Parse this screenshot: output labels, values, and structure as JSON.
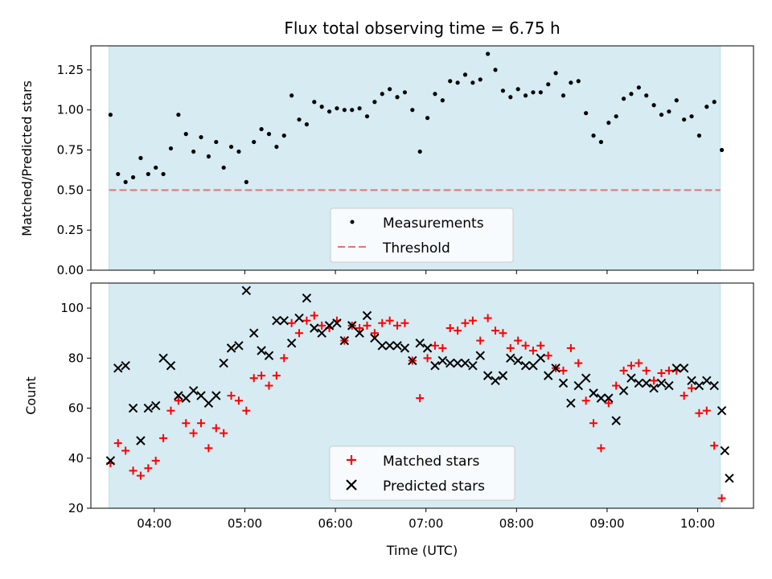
{
  "chart_data": [
    {
      "type": "scatter",
      "title": "Flux total observing time = 6.75 h",
      "ylabel": "Matched/Predicted stars",
      "xlabel": "",
      "ylim": [
        0,
        1.4
      ],
      "yticks": [
        "0.00",
        "0.25",
        "0.50",
        "0.75",
        "1.00",
        "1.25"
      ],
      "xlim": [
        "03:18",
        "10:37"
      ],
      "shaded_span": [
        "03:30",
        "10:15"
      ],
      "series": [
        {
          "name": "Measurements",
          "color": "#000000",
          "marker": "dot",
          "points": [
            [
              "03:31",
              0.97
            ],
            [
              "03:36",
              0.6
            ],
            [
              "03:41",
              0.55
            ],
            [
              "03:46",
              0.58
            ],
            [
              "03:51",
              0.7
            ],
            [
              "03:56",
              0.6
            ],
            [
              "04:01",
              0.64
            ],
            [
              "04:06",
              0.6
            ],
            [
              "04:11",
              0.76
            ],
            [
              "04:16",
              0.97
            ],
            [
              "04:21",
              0.85
            ],
            [
              "04:26",
              0.74
            ],
            [
              "04:31",
              0.83
            ],
            [
              "04:36",
              0.71
            ],
            [
              "04:41",
              0.8
            ],
            [
              "04:46",
              0.64
            ],
            [
              "04:51",
              0.77
            ],
            [
              "04:56",
              0.74
            ],
            [
              "05:01",
              0.55
            ],
            [
              "05:06",
              0.8
            ],
            [
              "05:11",
              0.88
            ],
            [
              "05:16",
              0.85
            ],
            [
              "05:21",
              0.77
            ],
            [
              "05:26",
              0.84
            ],
            [
              "05:31",
              1.09
            ],
            [
              "05:36",
              0.94
            ],
            [
              "05:41",
              0.91
            ],
            [
              "05:46",
              1.05
            ],
            [
              "05:51",
              1.02
            ],
            [
              "05:56",
              0.99
            ],
            [
              "06:01",
              1.01
            ],
            [
              "06:06",
              1.0
            ],
            [
              "06:11",
              1.0
            ],
            [
              "06:16",
              1.01
            ],
            [
              "06:21",
              0.96
            ],
            [
              "06:26",
              1.05
            ],
            [
              "06:31",
              1.1
            ],
            [
              "06:36",
              1.13
            ],
            [
              "06:41",
              1.08
            ],
            [
              "06:46",
              1.11
            ],
            [
              "06:51",
              1.0
            ],
            [
              "06:56",
              0.74
            ],
            [
              "07:01",
              0.95
            ],
            [
              "07:06",
              1.1
            ],
            [
              "07:11",
              1.06
            ],
            [
              "07:16",
              1.18
            ],
            [
              "07:21",
              1.17
            ],
            [
              "07:26",
              1.22
            ],
            [
              "07:31",
              1.17
            ],
            [
              "07:36",
              1.19
            ],
            [
              "07:41",
              1.35
            ],
            [
              "07:46",
              1.25
            ],
            [
              "07:51",
              1.12
            ],
            [
              "07:56",
              1.08
            ],
            [
              "08:01",
              1.13
            ],
            [
              "08:06",
              1.09
            ],
            [
              "08:11",
              1.11
            ],
            [
              "08:16",
              1.11
            ],
            [
              "08:21",
              1.16
            ],
            [
              "08:26",
              1.23
            ],
            [
              "08:31",
              1.09
            ],
            [
              "08:36",
              1.17
            ],
            [
              "08:41",
              1.18
            ],
            [
              "08:46",
              0.98
            ],
            [
              "08:51",
              0.84
            ],
            [
              "08:56",
              0.8
            ],
            [
              "09:01",
              0.92
            ],
            [
              "09:06",
              0.96
            ],
            [
              "09:11",
              1.07
            ],
            [
              "09:16",
              1.1
            ],
            [
              "09:21",
              1.14
            ],
            [
              "09:26",
              1.09
            ],
            [
              "09:31",
              1.03
            ],
            [
              "09:36",
              0.97
            ],
            [
              "09:41",
              0.99
            ],
            [
              "09:46",
              1.06
            ],
            [
              "09:51",
              0.94
            ],
            [
              "09:56",
              0.96
            ],
            [
              "10:01",
              0.84
            ],
            [
              "10:06",
              1.02
            ],
            [
              "10:11",
              1.05
            ],
            [
              "10:16",
              0.75
            ]
          ]
        },
        {
          "name": "Threshold",
          "color": "#f07070",
          "style": "dashed",
          "y": 0.5
        }
      ],
      "legend": "lower-center"
    },
    {
      "type": "scatter",
      "title": "",
      "ylabel": "Count",
      "xlabel": "Time (UTC)",
      "ylim": [
        20,
        110
      ],
      "yticks": [
        "20",
        "40",
        "60",
        "80",
        "100"
      ],
      "xticks": [
        "04:00",
        "05:00",
        "06:00",
        "07:00",
        "08:00",
        "09:00",
        "10:00"
      ],
      "xlim": [
        "03:18",
        "10:37"
      ],
      "shaded_span": [
        "03:30",
        "10:15"
      ],
      "series": [
        {
          "name": "Matched stars",
          "color": "#ff0000",
          "marker": "plus",
          "points": [
            [
              "03:31",
              38
            ],
            [
              "03:36",
              46
            ],
            [
              "03:41",
              43
            ],
            [
              "03:46",
              35
            ],
            [
              "03:51",
              33
            ],
            [
              "03:56",
              36
            ],
            [
              "04:01",
              39
            ],
            [
              "04:06",
              48
            ],
            [
              "04:11",
              59
            ],
            [
              "04:16",
              63
            ],
            [
              "04:21",
              54
            ],
            [
              "04:26",
              50
            ],
            [
              "04:31",
              54
            ],
            [
              "04:36",
              44
            ],
            [
              "04:41",
              52
            ],
            [
              "04:46",
              50
            ],
            [
              "04:51",
              65
            ],
            [
              "04:56",
              63
            ],
            [
              "05:01",
              59
            ],
            [
              "05:06",
              72
            ],
            [
              "05:11",
              73
            ],
            [
              "05:16",
              69
            ],
            [
              "05:21",
              73
            ],
            [
              "05:26",
              80
            ],
            [
              "05:31",
              94
            ],
            [
              "05:36",
              90
            ],
            [
              "05:41",
              95
            ],
            [
              "05:46",
              97
            ],
            [
              "05:51",
              93
            ],
            [
              "05:56",
              92
            ],
            [
              "06:01",
              95
            ],
            [
              "06:06",
              87
            ],
            [
              "06:11",
              93
            ],
            [
              "06:16",
              92
            ],
            [
              "06:21",
              93
            ],
            [
              "06:26",
              90
            ],
            [
              "06:31",
              94
            ],
            [
              "06:36",
              95
            ],
            [
              "06:41",
              93
            ],
            [
              "06:46",
              94
            ],
            [
              "06:51",
              79
            ],
            [
              "06:56",
              64
            ],
            [
              "07:01",
              80
            ],
            [
              "07:06",
              85
            ],
            [
              "07:11",
              84
            ],
            [
              "07:16",
              92
            ],
            [
              "07:21",
              91
            ],
            [
              "07:26",
              94
            ],
            [
              "07:31",
              95
            ],
            [
              "07:36",
              87
            ],
            [
              "07:41",
              96
            ],
            [
              "07:46",
              91
            ],
            [
              "07:51",
              90
            ],
            [
              "07:56",
              84
            ],
            [
              "08:01",
              87
            ],
            [
              "08:06",
              85
            ],
            [
              "08:11",
              83
            ],
            [
              "08:16",
              85
            ],
            [
              "08:21",
              81
            ],
            [
              "08:26",
              76
            ],
            [
              "08:31",
              75
            ],
            [
              "08:36",
              84
            ],
            [
              "08:41",
              78
            ],
            [
              "08:46",
              63
            ],
            [
              "08:51",
              54
            ],
            [
              "08:56",
              44
            ],
            [
              "09:01",
              62
            ],
            [
              "09:06",
              69
            ],
            [
              "09:11",
              75
            ],
            [
              "09:16",
              77
            ],
            [
              "09:21",
              78
            ],
            [
              "09:26",
              75
            ],
            [
              "09:31",
              71
            ],
            [
              "09:36",
              74
            ],
            [
              "09:41",
              75
            ],
            [
              "09:46",
              75
            ],
            [
              "09:51",
              65
            ],
            [
              "09:56",
              68
            ],
            [
              "10:01",
              58
            ],
            [
              "10:06",
              59
            ],
            [
              "10:11",
              45
            ],
            [
              "10:16",
              24
            ]
          ]
        },
        {
          "name": "Predicted stars",
          "color": "#000000",
          "marker": "x",
          "points": [
            [
              "03:31",
              39
            ],
            [
              "03:36",
              76
            ],
            [
              "03:41",
              77
            ],
            [
              "03:46",
              60
            ],
            [
              "03:51",
              47
            ],
            [
              "03:56",
              60
            ],
            [
              "04:01",
              61
            ],
            [
              "04:06",
              80
            ],
            [
              "04:11",
              77
            ],
            [
              "04:16",
              65
            ],
            [
              "04:21",
              64
            ],
            [
              "04:26",
              67
            ],
            [
              "04:31",
              65
            ],
            [
              "04:36",
              62
            ],
            [
              "04:41",
              65
            ],
            [
              "04:46",
              78
            ],
            [
              "04:51",
              84
            ],
            [
              "04:56",
              85
            ],
            [
              "05:01",
              107
            ],
            [
              "05:06",
              90
            ],
            [
              "05:11",
              83
            ],
            [
              "05:16",
              81
            ],
            [
              "05:21",
              95
            ],
            [
              "05:26",
              95
            ],
            [
              "05:31",
              86
            ],
            [
              "05:36",
              96
            ],
            [
              "05:41",
              104
            ],
            [
              "05:46",
              92
            ],
            [
              "05:51",
              90
            ],
            [
              "05:56",
              93
            ],
            [
              "06:01",
              94
            ],
            [
              "06:06",
              87
            ],
            [
              "06:11",
              93
            ],
            [
              "06:16",
              90
            ],
            [
              "06:21",
              97
            ],
            [
              "06:26",
              88
            ],
            [
              "06:31",
              85
            ],
            [
              "06:36",
              85
            ],
            [
              "06:41",
              85
            ],
            [
              "06:46",
              84
            ],
            [
              "06:51",
              79
            ],
            [
              "06:56",
              86
            ],
            [
              "07:01",
              84
            ],
            [
              "07:06",
              77
            ],
            [
              "07:11",
              79
            ],
            [
              "07:16",
              78
            ],
            [
              "07:21",
              78
            ],
            [
              "07:26",
              78
            ],
            [
              "07:31",
              77
            ],
            [
              "07:36",
              81
            ],
            [
              "07:41",
              73
            ],
            [
              "07:46",
              71
            ],
            [
              "07:51",
              73
            ],
            [
              "07:56",
              80
            ],
            [
              "08:01",
              79
            ],
            [
              "08:06",
              77
            ],
            [
              "08:11",
              77
            ],
            [
              "08:16",
              80
            ],
            [
              "08:21",
              73
            ],
            [
              "08:26",
              76
            ],
            [
              "08:31",
              70
            ],
            [
              "08:36",
              62
            ],
            [
              "08:41",
              69
            ],
            [
              "08:46",
              72
            ],
            [
              "08:51",
              66
            ],
            [
              "08:56",
              64
            ],
            [
              "09:01",
              64
            ],
            [
              "09:06",
              55
            ],
            [
              "09:11",
              67
            ],
            [
              "09:16",
              72
            ],
            [
              "09:21",
              70
            ],
            [
              "09:26",
              70
            ],
            [
              "09:31",
              68
            ],
            [
              "09:36",
              70
            ],
            [
              "09:41",
              69
            ],
            [
              "09:46",
              76
            ],
            [
              "09:51",
              76
            ],
            [
              "09:56",
              71
            ],
            [
              "10:01",
              69
            ],
            [
              "10:06",
              71
            ],
            [
              "10:11",
              69
            ],
            [
              "10:16",
              59
            ],
            [
              "10:18",
              43
            ],
            [
              "10:21",
              32
            ]
          ]
        }
      ],
      "legend": "lower-center"
    }
  ]
}
